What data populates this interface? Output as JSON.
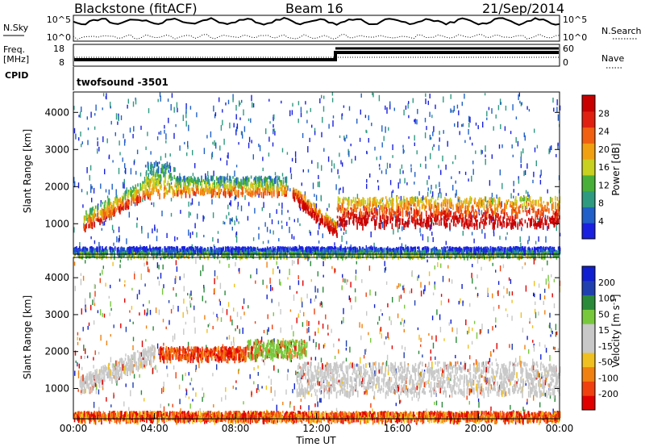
{
  "header": {
    "station": "Blackstone (fitACF)",
    "beam": "Beam 16",
    "date": "21/Sep/2014"
  },
  "strip": {
    "nsky_label": "N.Sky",
    "nsearch_label": "N.Search",
    "nsky_ticks": [
      "10^5",
      "10^0"
    ],
    "nsky_ticks_right": [
      "10^5",
      "10^0"
    ],
    "freq_label": "Freq.",
    "freq_unit": "[MHz]",
    "freq_ticks": [
      "18",
      "8"
    ],
    "nave_label": "Nave",
    "nave_ticks": [
      "60",
      "0"
    ],
    "cpid_label": "CPID",
    "cpid_value": "twofsound -3501"
  },
  "colors": {
    "power": [
      "#1a20e0",
      "#2060c8",
      "#2e9a80",
      "#48b038",
      "#c8d020",
      "#f0a010",
      "#f06010",
      "#e02010",
      "#c80000"
    ],
    "velocity": [
      "#e00000",
      "#f04010",
      "#f08010",
      "#f0c020",
      "#c8c8c8",
      "#c8c8c8",
      "#78c83c",
      "#2a8a3a",
      "#2040b0",
      "#1020d0"
    ]
  },
  "chart_data": [
    {
      "type": "heatmap",
      "panel": "power",
      "ylabel": "Slant Range [km]",
      "ylim": [
        180,
        4550
      ],
      "yticks": [
        "1000",
        "2000",
        "3000",
        "4000"
      ],
      "xlim_hours": [
        0,
        24
      ],
      "colorbar_label": "Power [dB]",
      "colorbar_ticks": [
        "4",
        "8",
        "12",
        "16",
        "20",
        "24",
        "28"
      ],
      "colorbar_range": [
        0,
        32
      ],
      "features": [
        {
          "name": "rising echo band",
          "x": [
            0.5,
            3.7
          ],
          "range_km": [
            900,
            2200
          ],
          "value": 20
        },
        {
          "name": "main band",
          "x": [
            5.0,
            10.5
          ],
          "range_km": [
            1850,
            2300
          ],
          "value": 16
        },
        {
          "name": "high band",
          "x": [
            3.5,
            5.0
          ],
          "range_km": [
            1800,
            2700
          ],
          "value": 14
        },
        {
          "name": "descending band",
          "x": [
            10.8,
            13.0
          ],
          "range_km": [
            600,
            1700
          ],
          "value": 28
        },
        {
          "name": "afternoon band",
          "x": [
            13.0,
            24.0
          ],
          "range_km": [
            1000,
            1750
          ],
          "value": 26
        },
        {
          "name": "near ground",
          "x": [
            0.0,
            24.0
          ],
          "range_km": [
            200,
            400
          ],
          "value": 6
        }
      ]
    },
    {
      "type": "heatmap",
      "panel": "velocity",
      "ylabel": "Slant Range [km]",
      "xlabel": "Time UT",
      "ylim": [
        180,
        4550
      ],
      "yticks": [
        "1000",
        "2000",
        "3000",
        "4000"
      ],
      "xlim_hours": [
        0,
        24
      ],
      "xticks": [
        "00:00",
        "04:00",
        "08:00",
        "12:00",
        "16:00",
        "20:00",
        "00:00"
      ],
      "colorbar_label": "Velocity [m s^-1]",
      "colorbar_ticks": [
        "-200",
        "-100",
        "-50",
        "-15",
        "15",
        "50",
        "100",
        "200"
      ],
      "features": [
        {
          "name": "ground scatter rising",
          "x": [
            0.3,
            4.0
          ],
          "range_km": [
            800,
            2700
          ],
          "value": 0
        },
        {
          "name": "westward flow",
          "x": [
            4.2,
            8.5
          ],
          "range_km": [
            1850,
            2150
          ],
          "value": -200
        },
        {
          "name": "green flow",
          "x": [
            8.5,
            11.5
          ],
          "range_km": [
            1900,
            2350
          ],
          "value": 50
        },
        {
          "name": "afternoon ground scatter",
          "x": [
            11.0,
            24.0
          ],
          "range_km": [
            900,
            1750
          ],
          "value": 0
        },
        {
          "name": "near ground",
          "x": [
            0.0,
            24.0
          ],
          "range_km": [
            200,
            400
          ],
          "value": -50
        }
      ]
    }
  ]
}
